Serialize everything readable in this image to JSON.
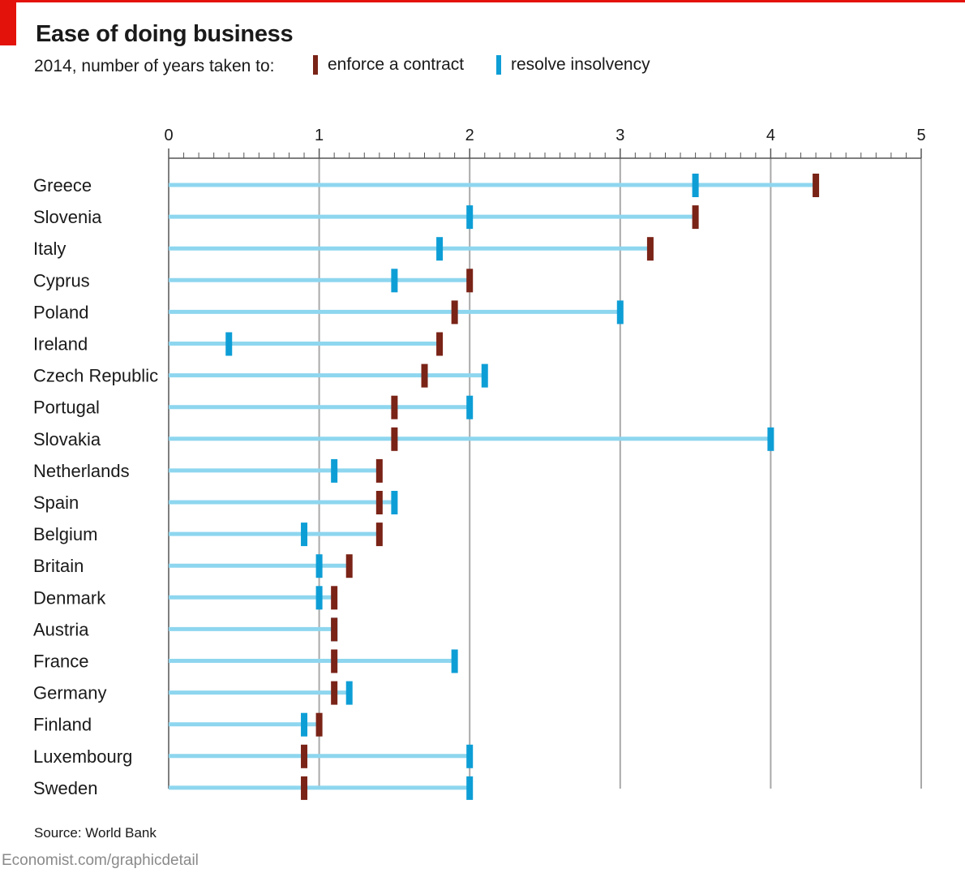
{
  "header": {
    "title": "Ease of doing business",
    "subtitle": "2014, number of years taken to:"
  },
  "colors": {
    "brand_red": "#e3120b",
    "enforce_marker": "#7a2317",
    "insolvency_marker": "#0e9ed6",
    "range_bar": "#8ed6ef",
    "gridline": "#a9a9a9",
    "axis": "#555555"
  },
  "legend": {
    "enforce_label": "enforce a contract",
    "insolvency_label": "resolve insolvency"
  },
  "chart_data": {
    "type": "dot-range",
    "title": "Ease of doing business",
    "subtitle": "2014, number of years taken to:",
    "xlabel": "",
    "ylabel": "",
    "xlim": [
      0,
      5
    ],
    "x_ticks": [
      0,
      1,
      2,
      3,
      4,
      5
    ],
    "minor_tick_step": 0.1,
    "grid": true,
    "legend_position": "top",
    "categories": [
      "Greece",
      "Slovenia",
      "Italy",
      "Cyprus",
      "Poland",
      "Ireland",
      "Czech Republic",
      "Portugal",
      "Slovakia",
      "Netherlands",
      "Spain",
      "Belgium",
      "Britain",
      "Denmark",
      "Austria",
      "France",
      "Germany",
      "Finland",
      "Luxembourg",
      "Sweden"
    ],
    "series": [
      {
        "name": "enforce a contract",
        "values": [
          4.3,
          3.5,
          3.2,
          2.0,
          1.9,
          1.8,
          1.7,
          1.5,
          1.5,
          1.4,
          1.4,
          1.4,
          1.2,
          1.1,
          1.1,
          1.1,
          1.1,
          1.0,
          0.9,
          0.9
        ]
      },
      {
        "name": "resolve insolvency",
        "values": [
          3.5,
          2.0,
          1.8,
          1.5,
          3.0,
          0.4,
          2.1,
          2.0,
          4.0,
          1.1,
          1.5,
          0.9,
          1.0,
          1.0,
          1.1,
          1.9,
          1.2,
          0.9,
          2.0,
          2.0
        ]
      }
    ]
  },
  "source": "Source: World Bank",
  "footer": "Economist.com/graphicdetail"
}
